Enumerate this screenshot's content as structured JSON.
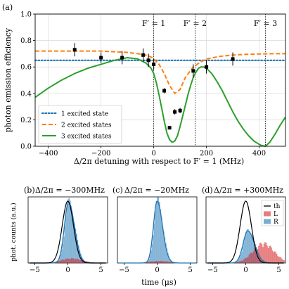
{
  "panel_labels": {
    "a": "(a)",
    "b": "(b)",
    "c": "(c)",
    "d": "(d)"
  },
  "colors": {
    "one_state": "#1f77b4",
    "two_states": "#ff7f0e",
    "three_states": "#2ca02c",
    "data": "#000000",
    "hist_R": "#1f77b4",
    "hist_L": "#d62728",
    "theory": "#000000"
  },
  "chart_data": [
    {
      "type": "line",
      "panel": "(a)",
      "ylabel": "photon emission efficiency",
      "xlabel": "Δ/2π detuning with respect to F′ = 1 (MHz)",
      "xlim": [
        -450,
        500
      ],
      "ylim": [
        0,
        1.0
      ],
      "xticks": [
        -400,
        -200,
        0,
        200,
        400
      ],
      "yticks": [
        0.0,
        0.2,
        0.4,
        0.6,
        0.8,
        1.0
      ],
      "xtick_labels": [
        "−400",
        "−200",
        "0",
        "200",
        "400"
      ],
      "ytick_labels": [
        "0.0",
        "0.2",
        "0.4",
        "0.6",
        "0.8",
        "1.0"
      ],
      "grid": true,
      "legend_position": "lower-left",
      "vlines": [
        {
          "x": 0,
          "label": "F′ = 1"
        },
        {
          "x": 157,
          "label": "F′ = 2"
        },
        {
          "x": 424,
          "label": "F′ = 3"
        }
      ],
      "series": [
        {
          "name": "1 excited state",
          "style": "dotted",
          "x": [
            -450,
            500
          ],
          "y": [
            0.65,
            0.65
          ]
        },
        {
          "name": "2 excited states",
          "style": "dashed",
          "x": [
            -450,
            -350,
            -300,
            -250,
            -200,
            -150,
            -100,
            -60,
            -30,
            -10,
            0,
            20,
            40,
            60,
            80,
            100,
            120,
            150,
            180,
            200,
            250,
            300,
            350,
            400,
            450,
            500
          ],
          "y": [
            0.72,
            0.72,
            0.72,
            0.72,
            0.72,
            0.715,
            0.71,
            0.7,
            0.69,
            0.675,
            0.66,
            0.62,
            0.55,
            0.46,
            0.4,
            0.43,
            0.52,
            0.6,
            0.64,
            0.66,
            0.68,
            0.69,
            0.695,
            0.698,
            0.7,
            0.7
          ]
        },
        {
          "name": "3 excited states",
          "style": "solid",
          "x": [
            -450,
            -400,
            -350,
            -300,
            -250,
            -200,
            -150,
            -100,
            -60,
            -30,
            -10,
            0,
            10,
            20,
            30,
            40,
            50,
            60,
            70,
            80,
            90,
            100,
            110,
            120,
            130,
            140,
            150,
            160,
            170,
            180,
            190,
            200,
            220,
            240,
            260,
            280,
            300,
            320,
            340,
            360,
            380,
            400,
            410,
            424,
            440,
            460,
            480,
            500
          ],
          "y": [
            0.37,
            0.44,
            0.5,
            0.55,
            0.59,
            0.62,
            0.65,
            0.67,
            0.66,
            0.63,
            0.59,
            0.55,
            0.48,
            0.39,
            0.29,
            0.19,
            0.1,
            0.05,
            0.03,
            0.04,
            0.08,
            0.15,
            0.23,
            0.31,
            0.39,
            0.46,
            0.52,
            0.56,
            0.59,
            0.6,
            0.6,
            0.59,
            0.55,
            0.49,
            0.42,
            0.34,
            0.26,
            0.19,
            0.13,
            0.08,
            0.04,
            0.015,
            0.005,
            0.0,
            0.03,
            0.09,
            0.16,
            0.22
          ]
        },
        {
          "name": "data",
          "style": "markers",
          "x": [
            -300,
            -200,
            -120,
            -40,
            -20,
            0,
            40,
            60,
            80,
            100,
            150,
            200,
            300
          ],
          "y": [
            0.73,
            0.67,
            0.67,
            0.69,
            0.65,
            0.62,
            0.42,
            0.14,
            0.26,
            0.27,
            0.57,
            0.6,
            0.66
          ],
          "yerr": [
            0.05,
            0.04,
            0.05,
            0.05,
            0.05,
            0.04,
            0.02,
            0.01,
            0.02,
            0.02,
            0.05,
            0.05,
            0.05
          ]
        }
      ]
    },
    {
      "type": "area",
      "panel": "(b)",
      "title": "Δ/2π = −300MHz",
      "ylabel": "phot. counts (a.u.)",
      "xticks": [
        -5,
        0,
        5
      ],
      "xtick_labels": [
        "−5",
        "0",
        "5"
      ],
      "xlim": [
        -6,
        6
      ]
    },
    {
      "type": "area",
      "panel": "(c)",
      "title": "Δ/2π = −20MHz",
      "xticks": [
        -5,
        0,
        5
      ],
      "xtick_labels": [
        "−5",
        "0",
        "5"
      ],
      "xlim": [
        -6,
        6
      ]
    },
    {
      "type": "area",
      "panel": "(d)",
      "title": "Δ/2π = +300MHz",
      "xlabel": "time (μs)",
      "xticks": [
        -5,
        0,
        5
      ],
      "xtick_labels": [
        "−5",
        "0",
        "5"
      ],
      "xlim": [
        -6,
        6
      ],
      "legend_position": "upper-right",
      "legend": [
        "th",
        "L",
        "R"
      ]
    }
  ]
}
